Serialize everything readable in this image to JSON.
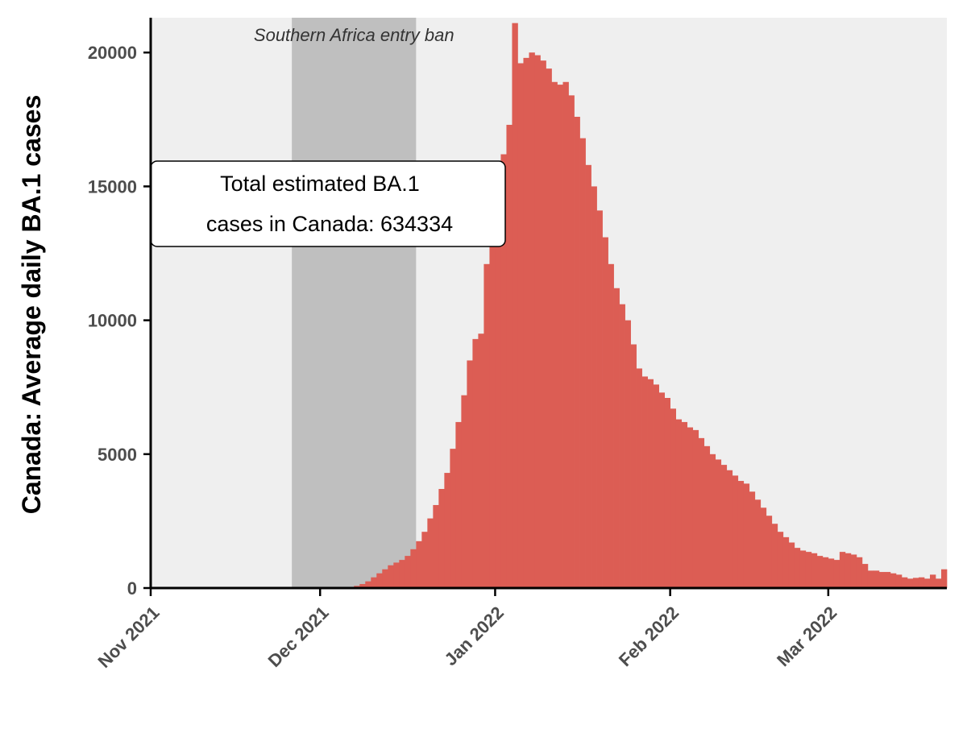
{
  "chart_data": {
    "type": "bar",
    "title": "",
    "xlabel": "",
    "ylabel": "Canada: Average daily BA.1 cases",
    "x_axis": {
      "type": "date",
      "range": [
        "2021-11-01",
        "2022-03-22"
      ],
      "ticks": [
        {
          "date": "2021-11-01",
          "label": "Nov 2021"
        },
        {
          "date": "2021-12-01",
          "label": "Dec 2021"
        },
        {
          "date": "2022-01-01",
          "label": "Jan 2022"
        },
        {
          "date": "2022-02-01",
          "label": "Feb 2022"
        },
        {
          "date": "2022-03-01",
          "label": "Mar 2022"
        }
      ]
    },
    "ylim": [
      0,
      21300
    ],
    "y_ticks": [
      {
        "value": 0,
        "label": "0"
      },
      {
        "value": 5000,
        "label": "5000"
      },
      {
        "value": 10000,
        "label": "10000"
      },
      {
        "value": 15000,
        "label": "15000"
      },
      {
        "value": 20000,
        "label": "20000"
      }
    ],
    "grid": false,
    "shaded_region": {
      "start": "2021-11-26",
      "end": "2021-12-18",
      "label": "Southern Africa entry ban",
      "color": "#bfbfbf"
    },
    "annotation_box": {
      "lines": [
        "Total estimated BA.1",
        "cases in Canada: 634334"
      ]
    },
    "series": [
      {
        "color": "#dc5d54",
        "start_date": "2021-12-05",
        "values": [
          10,
          40,
          80,
          150,
          250,
          400,
          550,
          700,
          850,
          950,
          1050,
          1200,
          1450,
          1750,
          2100,
          2600,
          3100,
          3700,
          4300,
          5200,
          6200,
          7200,
          8500,
          9300,
          9500,
          12100,
          12900,
          14700,
          16200,
          17300,
          21100,
          19600,
          19800,
          20000,
          19900,
          19700,
          19400,
          18900,
          18800,
          18900,
          18400,
          17600,
          16800,
          15800,
          15000,
          14100,
          13100,
          12100,
          11200,
          10600,
          10000,
          9100,
          8200,
          7900,
          7800,
          7600,
          7300,
          7100,
          6700,
          6300,
          6200,
          6000,
          5900,
          5600,
          5300,
          5000,
          4800,
          4600,
          4400,
          4200,
          4000,
          3900,
          3600,
          3300,
          3000,
          2700,
          2400,
          2100,
          1900,
          1700,
          1500,
          1400,
          1350,
          1300,
          1200,
          1150,
          1100,
          1050,
          1350,
          1300,
          1250,
          1150,
          900,
          650,
          650,
          600,
          600,
          550,
          500,
          400,
          350,
          380,
          400,
          350,
          500,
          350,
          700
        ]
      }
    ]
  }
}
